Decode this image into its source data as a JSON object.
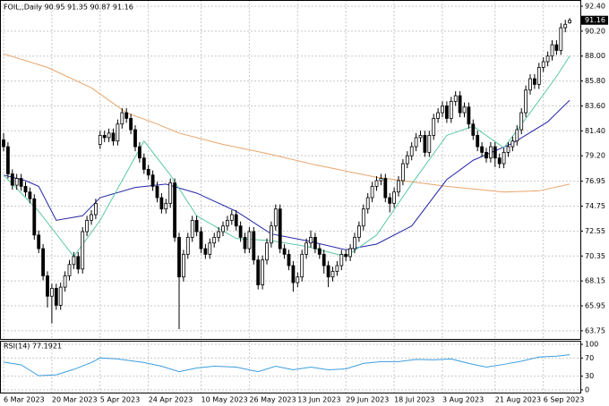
{
  "chart_data": {
    "type": "candlestick",
    "title": "FOIL,,Daily  90.95 91.35 90.87 91.16",
    "categories": [
      "6 Mar 2023",
      null,
      null,
      null,
      null,
      null,
      null,
      null,
      null,
      null,
      null,
      "20 Mar 2023",
      null,
      null,
      null,
      null,
      null,
      null,
      null,
      null,
      null,
      null,
      "5 Apr 2023",
      null,
      null,
      null,
      null,
      null,
      null,
      null,
      null,
      null,
      null,
      "24 Apr 2023",
      null,
      null,
      null,
      null,
      null,
      null,
      null,
      null,
      null,
      null,
      null,
      "10 May 2023",
      null,
      null,
      null,
      null,
      null,
      null,
      null,
      null,
      null,
      null,
      "26 May 2023",
      null,
      null,
      null,
      null,
      null,
      null,
      null,
      null,
      null,
      null,
      "13 Jun 2023",
      null,
      null,
      null,
      null,
      null,
      null,
      null,
      null,
      null,
      null,
      "29 Jun 2023",
      null,
      null,
      null,
      null,
      null,
      null,
      null,
      null,
      null,
      null,
      "18 Jul 2023",
      null,
      null,
      null,
      null,
      null,
      null,
      null,
      null,
      null,
      null,
      "3 Aug 2023",
      null,
      null,
      null,
      null,
      null,
      null,
      null,
      null,
      null,
      null,
      null,
      "21 Aug 2023",
      null,
      null,
      null,
      null,
      null,
      null,
      null,
      null,
      null,
      null,
      "6 Sep 2023",
      null,
      null,
      null,
      null,
      null,
      null
    ],
    "ohlc": [
      [
        80.6,
        81.2,
        79.6,
        80.0
      ],
      [
        80.0,
        80.4,
        77.2,
        77.6
      ],
      [
        77.6,
        78.0,
        76.2,
        76.6
      ],
      [
        76.6,
        77.6,
        76.2,
        77.2
      ],
      [
        77.2,
        77.6,
        76.1,
        76.5
      ],
      [
        76.5,
        76.9,
        75.6,
        76.0
      ],
      [
        76.0,
        76.4,
        75.0,
        75.4
      ],
      [
        75.4,
        75.8,
        71.8,
        72.2
      ],
      [
        72.2,
        72.6,
        70.6,
        71.0
      ],
      [
        71.0,
        71.4,
        68.2,
        68.6
      ],
      [
        68.6,
        69.0,
        65.8,
        66.8
      ],
      [
        66.8,
        67.9,
        64.4,
        67.5
      ],
      [
        67.5,
        67.9,
        65.6,
        66.0
      ],
      [
        66.0,
        68.0,
        65.6,
        67.6
      ],
      [
        67.6,
        69.0,
        67.2,
        68.6
      ],
      [
        68.6,
        70.0,
        68.2,
        69.6
      ],
      [
        69.6,
        70.7,
        69.2,
        70.3
      ],
      [
        70.3,
        70.7,
        68.8,
        69.2
      ],
      [
        69.2,
        72.9,
        68.8,
        72.5
      ],
      [
        72.5,
        73.9,
        72.1,
        73.5
      ],
      [
        73.5,
        74.4,
        73.1,
        74.0
      ],
      [
        74.0,
        75.4,
        73.6,
        75.0
      ],
      [
        80.2,
        81.4,
        79.8,
        81.0
      ],
      [
        81.0,
        81.4,
        80.4,
        80.8
      ],
      [
        80.8,
        81.6,
        80.4,
        81.2
      ],
      [
        81.2,
        81.6,
        80.1,
        80.5
      ],
      [
        80.5,
        82.4,
        80.1,
        82.0
      ],
      [
        82.0,
        83.4,
        81.6,
        83.0
      ],
      [
        83.0,
        83.4,
        82.1,
        82.5
      ],
      [
        82.5,
        82.9,
        81.1,
        81.5
      ],
      [
        81.5,
        81.9,
        79.6,
        80.0
      ],
      [
        80.0,
        80.4,
        78.6,
        79.0
      ],
      [
        79.0,
        79.4,
        77.6,
        78.0
      ],
      [
        78.0,
        78.4,
        77.1,
        77.5
      ],
      [
        77.5,
        77.9,
        76.1,
        76.5
      ],
      [
        76.5,
        76.9,
        75.1,
        75.5
      ],
      [
        75.5,
        75.9,
        74.1,
        74.5
      ],
      [
        74.5,
        75.4,
        74.1,
        75.0
      ],
      [
        75.0,
        77.2,
        74.6,
        76.8
      ],
      [
        76.8,
        77.2,
        71.6,
        72.0
      ],
      [
        72.0,
        72.4,
        63.9,
        68.5
      ],
      [
        68.5,
        70.9,
        68.1,
        70.5
      ],
      [
        70.5,
        72.4,
        70.1,
        72.0
      ],
      [
        72.0,
        73.9,
        71.6,
        73.5
      ],
      [
        73.5,
        73.9,
        72.1,
        72.5
      ],
      [
        72.5,
        72.9,
        70.6,
        71.0
      ],
      [
        71.0,
        71.4,
        70.1,
        70.5
      ],
      [
        70.5,
        71.9,
        70.1,
        71.5
      ],
      [
        71.5,
        72.4,
        71.1,
        72.0
      ],
      [
        72.0,
        72.9,
        71.6,
        72.5
      ],
      [
        72.5,
        73.4,
        72.1,
        73.0
      ],
      [
        73.0,
        73.9,
        72.6,
        73.5
      ],
      [
        73.5,
        74.4,
        73.1,
        74.0
      ],
      [
        74.0,
        74.4,
        72.6,
        73.0
      ],
      [
        73.0,
        73.4,
        71.6,
        72.0
      ],
      [
        72.0,
        72.4,
        70.6,
        71.0
      ],
      [
        71.0,
        72.9,
        70.6,
        72.5
      ],
      [
        72.5,
        72.9,
        69.6,
        70.0
      ],
      [
        70.0,
        70.4,
        67.4,
        67.8
      ],
      [
        67.8,
        70.4,
        67.4,
        70.0
      ],
      [
        70.0,
        71.9,
        69.6,
        71.5
      ],
      [
        71.5,
        73.4,
        71.1,
        73.0
      ],
      [
        73.0,
        74.9,
        72.6,
        74.5
      ],
      [
        74.5,
        74.9,
        70.6,
        71.0
      ],
      [
        71.0,
        71.4,
        70.1,
        70.5
      ],
      [
        70.5,
        70.9,
        69.1,
        69.5
      ],
      [
        69.5,
        69.9,
        67.2,
        68.0
      ],
      [
        68.0,
        68.9,
        67.6,
        68.5
      ],
      [
        68.5,
        70.9,
        68.1,
        70.5
      ],
      [
        70.5,
        71.9,
        70.1,
        71.5
      ],
      [
        71.5,
        72.6,
        71.1,
        72.0
      ],
      [
        72.0,
        72.4,
        70.6,
        71.0
      ],
      [
        71.0,
        71.4,
        70.1,
        70.5
      ],
      [
        70.5,
        70.9,
        68.8,
        69.5
      ],
      [
        69.5,
        69.9,
        67.6,
        68.5
      ],
      [
        68.5,
        69.4,
        68.1,
        69.0
      ],
      [
        69.0,
        69.9,
        68.6,
        69.5
      ],
      [
        69.5,
        70.9,
        69.1,
        70.5
      ],
      [
        70.5,
        70.9,
        69.9,
        70.3
      ],
      [
        70.3,
        71.4,
        69.9,
        71.0
      ],
      [
        71.0,
        72.4,
        70.6,
        72.0
      ],
      [
        72.0,
        73.4,
        71.6,
        73.0
      ],
      [
        73.0,
        74.9,
        72.6,
        74.5
      ],
      [
        74.5,
        75.9,
        74.1,
        75.5
      ],
      [
        75.5,
        76.9,
        75.1,
        76.5
      ],
      [
        76.5,
        77.4,
        76.1,
        77.0
      ],
      [
        77.0,
        77.6,
        76.6,
        77.2
      ],
      [
        77.2,
        77.6,
        75.1,
        75.5
      ],
      [
        75.5,
        75.9,
        74.2,
        75.0
      ],
      [
        75.0,
        76.4,
        74.6,
        76.0
      ],
      [
        76.0,
        77.4,
        75.6,
        77.0
      ],
      [
        77.0,
        78.9,
        76.6,
        78.5
      ],
      [
        78.5,
        79.6,
        78.1,
        79.2
      ],
      [
        79.2,
        80.4,
        78.8,
        80.0
      ],
      [
        80.0,
        81.2,
        79.6,
        80.8
      ],
      [
        80.8,
        81.4,
        80.4,
        81.0
      ],
      [
        81.0,
        81.4,
        79.1,
        79.5
      ],
      [
        79.5,
        81.4,
        79.1,
        81.0
      ],
      [
        81.0,
        82.9,
        80.6,
        82.5
      ],
      [
        82.5,
        83.4,
        82.1,
        83.0
      ],
      [
        83.0,
        84.0,
        82.6,
        83.6
      ],
      [
        83.6,
        84.0,
        82.1,
        82.5
      ],
      [
        82.5,
        84.4,
        82.1,
        84.0
      ],
      [
        84.0,
        84.9,
        83.6,
        84.5
      ],
      [
        84.5,
        84.9,
        82.6,
        83.0
      ],
      [
        83.0,
        83.9,
        82.6,
        83.5
      ],
      [
        83.5,
        83.9,
        81.6,
        82.0
      ],
      [
        82.0,
        82.4,
        80.6,
        81.0
      ],
      [
        81.0,
        81.4,
        79.6,
        80.0
      ],
      [
        80.0,
        80.4,
        79.1,
        79.5
      ],
      [
        79.5,
        79.9,
        78.6,
        79.0
      ],
      [
        79.0,
        80.4,
        78.6,
        80.0
      ],
      [
        80.0,
        80.4,
        78.2,
        79.0
      ],
      [
        79.0,
        79.4,
        78.1,
        78.5
      ],
      [
        78.5,
        79.9,
        78.1,
        79.5
      ],
      [
        79.5,
        80.4,
        79.1,
        80.0
      ],
      [
        80.0,
        80.9,
        79.6,
        80.5
      ],
      [
        80.5,
        81.9,
        80.1,
        81.5
      ],
      [
        81.5,
        83.4,
        81.1,
        83.0
      ],
      [
        83.0,
        85.4,
        82.6,
        85.0
      ],
      [
        85.0,
        86.4,
        84.6,
        86.0
      ],
      [
        86.0,
        86.4,
        85.1,
        85.5
      ],
      [
        85.5,
        87.4,
        85.1,
        87.0
      ],
      [
        87.0,
        87.9,
        86.6,
        87.5
      ],
      [
        87.5,
        88.4,
        87.1,
        88.0
      ],
      [
        88.0,
        89.4,
        87.6,
        89.0
      ],
      [
        89.0,
        89.4,
        88.1,
        88.5
      ],
      [
        88.5,
        90.9,
        88.1,
        90.5
      ],
      [
        90.5,
        91.2,
        90.1,
        90.8
      ],
      [
        90.95,
        91.35,
        90.87,
        91.16
      ]
    ],
    "up_color": "#ffffff",
    "down_color": "#000000",
    "series": [
      {
        "color": "#e9a46a",
        "x": [
          0,
          10,
          20,
          28,
          35,
          40,
          50,
          60,
          71,
          85,
          101,
          114,
          122,
          129
        ],
        "values": [
          88.2,
          87.0,
          85.2,
          83.0,
          82.0,
          81.2,
          80.2,
          79.4,
          78.4,
          77.3,
          76.5,
          76.0,
          76.1,
          76.7
        ]
      },
      {
        "color": "#2424a8",
        "x": [
          0,
          5,
          8,
          12,
          18,
          22,
          30,
          37,
          44,
          53,
          61,
          69,
          78,
          85,
          93,
          101,
          107,
          116,
          124,
          129
        ],
        "values": [
          77.5,
          77.0,
          76.5,
          73.5,
          73.9,
          75.5,
          76.4,
          76.7,
          75.9,
          74.3,
          72.3,
          71.7,
          70.9,
          71.4,
          73.0,
          77.1,
          78.8,
          80.3,
          82.2,
          84.1
        ]
      },
      {
        "color": "#5cc8a4",
        "x": [
          0,
          8,
          16,
          22,
          32,
          38,
          44,
          53,
          61,
          69,
          78,
          85,
          93,
          101,
          107,
          114,
          120,
          126,
          129
        ],
        "values": [
          77.5,
          74.3,
          70.3,
          73.5,
          80.5,
          77.5,
          73.9,
          71.9,
          71.7,
          71.2,
          70.3,
          72.2,
          76.7,
          81.0,
          81.8,
          79.9,
          83.0,
          86.2,
          88.0
        ]
      }
    ],
    "ylim": [
      62.95,
      92.95
    ],
    "yticks": [
      {
        "value": 92.4,
        "label": "92.40"
      },
      {
        "value": 90.2,
        "label": "90.20"
      },
      {
        "value": 88.0,
        "label": "88.00"
      },
      {
        "value": 85.8,
        "label": "85.80"
      },
      {
        "value": 83.6,
        "label": "83.60"
      },
      {
        "value": 81.4,
        "label": "81.40"
      },
      {
        "value": 79.2,
        "label": "79.20"
      },
      {
        "value": 76.95,
        "label": "76.95"
      },
      {
        "value": 74.75,
        "label": "74.75"
      },
      {
        "value": 72.55,
        "label": "72.55"
      },
      {
        "value": 70.35,
        "label": "70.35"
      },
      {
        "value": 68.15,
        "label": "68.15"
      },
      {
        "value": 65.95,
        "label": "65.95"
      },
      {
        "value": 63.75,
        "label": "63.75"
      }
    ],
    "last_price": 91.16,
    "grid": true,
    "rsi": {
      "label": "RSI(14) 77.1921",
      "color": "#3c9ee0",
      "x": [
        0,
        4,
        8,
        12,
        16,
        20,
        22,
        26,
        32,
        36,
        40,
        44,
        48,
        53,
        58,
        62,
        66,
        70,
        74,
        78,
        82,
        86,
        90,
        94,
        98,
        102,
        106,
        110,
        114,
        118,
        122,
        126,
        129
      ],
      "values": [
        61,
        55,
        31,
        33,
        45,
        60,
        70,
        68,
        60,
        52,
        40,
        48,
        52,
        50,
        40,
        52,
        44,
        50,
        44,
        46,
        58,
        62,
        62,
        67,
        66,
        68,
        58,
        50,
        56,
        63,
        72,
        74,
        77.19
      ],
      "ylim": [
        -8,
        106
      ],
      "yticks": [
        100,
        70,
        30,
        0
      ]
    }
  }
}
